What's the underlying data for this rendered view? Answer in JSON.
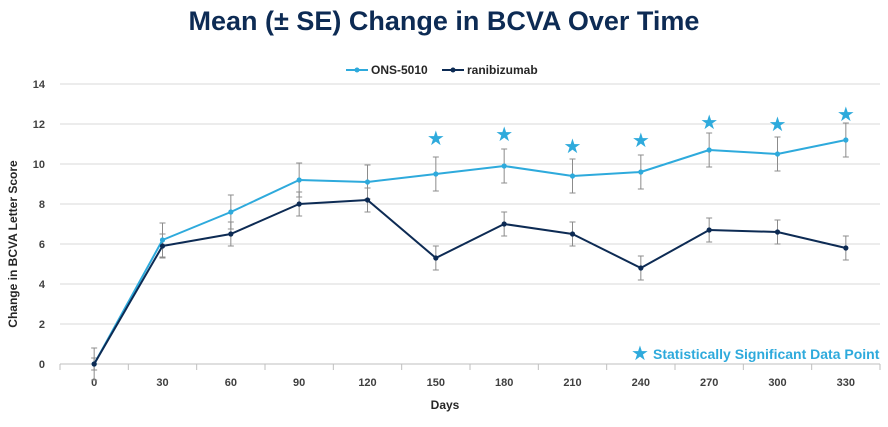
{
  "chart_data": {
    "type": "line",
    "title": "Mean (± SE) Change in BCVA Over Time",
    "xlabel": "Days",
    "ylabel": "Change in BCVA Letter Score",
    "x": [
      0,
      30,
      60,
      90,
      120,
      150,
      180,
      210,
      240,
      270,
      300,
      330
    ],
    "x_tick_labels": [
      "0",
      "30",
      "60",
      "90",
      "120",
      "150",
      "180",
      "210",
      "240",
      "270",
      "300",
      "330"
    ],
    "ylim": [
      0,
      14
    ],
    "y_ticks": [
      0,
      2,
      4,
      6,
      8,
      10,
      12,
      14
    ],
    "grid": "horizontal",
    "legend_position": "top-center",
    "series": [
      {
        "name": "ONS-5010",
        "color": "#2eaadc",
        "values": [
          0,
          6.2,
          7.6,
          9.2,
          9.1,
          9.5,
          9.9,
          9.4,
          9.6,
          10.7,
          10.5,
          11.2
        ],
        "se": [
          0.8,
          0.85,
          0.85,
          0.85,
          0.85,
          0.85,
          0.85,
          0.85,
          0.85,
          0.85,
          0.85,
          0.85
        ]
      },
      {
        "name": "ranibizumab",
        "color": "#0d2b54",
        "values": [
          0,
          5.9,
          6.5,
          8.0,
          8.2,
          5.3,
          7.0,
          6.5,
          4.8,
          6.7,
          6.6,
          5.8
        ],
        "se": [
          0.3,
          0.6,
          0.6,
          0.6,
          0.6,
          0.6,
          0.6,
          0.6,
          0.6,
          0.6,
          0.6,
          0.6
        ]
      }
    ],
    "significant_points": {
      "x": [
        150,
        180,
        210,
        240,
        270,
        300,
        330
      ],
      "marker_values": [
        11.3,
        11.5,
        10.9,
        11.2,
        12.1,
        12.0,
        12.5
      ],
      "color": "#2eaadc"
    },
    "annotation": {
      "icon": "star-icon",
      "text": "Statistically Significant Data Point",
      "color": "#2eaadc"
    }
  }
}
